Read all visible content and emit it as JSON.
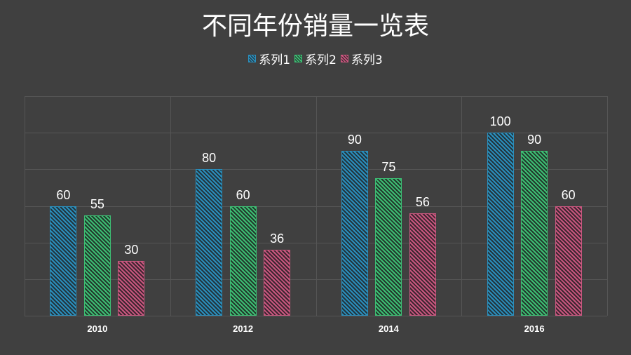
{
  "title": "不同年份销量一览表",
  "colors": {
    "background": "#404040",
    "series1": "#2a8fbd",
    "series2": "#3dbf74",
    "series3": "#c9577f",
    "grid": "#555555"
  },
  "legend": [
    {
      "label": "系列1",
      "color": "#2a8fbd"
    },
    {
      "label": "系列2",
      "color": "#3dbf74"
    },
    {
      "label": "系列3",
      "color": "#c9577f"
    }
  ],
  "chart_data": {
    "type": "bar",
    "title": "不同年份销量一览表",
    "categories": [
      "2010",
      "2012",
      "2014",
      "2016"
    ],
    "series": [
      {
        "name": "系列1",
        "values": [
          60,
          80,
          90,
          100
        ]
      },
      {
        "name": "系列2",
        "values": [
          55,
          60,
          75,
          90
        ]
      },
      {
        "name": "系列3",
        "values": [
          30,
          36,
          56,
          60
        ]
      }
    ],
    "xlabel": "",
    "ylabel": "",
    "ylim": [
      0,
      120
    ],
    "grid": true,
    "legend_position": "top",
    "data_labels": true,
    "fill_pattern": "diagonal-hatch"
  }
}
